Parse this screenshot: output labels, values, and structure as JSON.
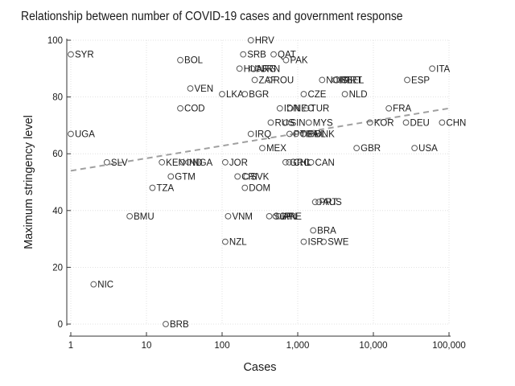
{
  "chart_data": {
    "type": "scatter",
    "title": "Relationship between number of COVID-19 cases and government response",
    "xlabel": "Cases",
    "ylabel": "Maximum stringency level",
    "xscale": "log",
    "xlim": [
      1,
      100000
    ],
    "ylim": [
      0,
      100
    ],
    "xticks": [
      1,
      10,
      100,
      1000,
      10000,
      100000
    ],
    "xtick_labels": [
      "1",
      "10",
      "100",
      "1,000",
      "10,000",
      "100,000"
    ],
    "yticks": [
      0,
      20,
      40,
      60,
      80,
      100
    ],
    "ytick_labels": [
      "0",
      "20",
      "40",
      "60",
      "80",
      "100"
    ],
    "grid": true,
    "legend": "none",
    "trendline": {
      "style": "dashed",
      "color": "#a0a0a0",
      "x": [
        1,
        100000
      ],
      "y": [
        54,
        76
      ]
    },
    "marker_color": "#555555",
    "points": [
      {
        "label": "HRV",
        "x": 240,
        "y": 100
      },
      {
        "label": "SRB",
        "x": 190,
        "y": 95
      },
      {
        "label": "QAT",
        "x": 480,
        "y": 95
      },
      {
        "label": "PAK",
        "x": 700,
        "y": 93
      },
      {
        "label": "SYR",
        "x": 1,
        "y": 95
      },
      {
        "label": "BOL",
        "x": 28,
        "y": 93
      },
      {
        "label": "HUN",
        "x": 170,
        "y": 90
      },
      {
        "label": "ARG",
        "x": 250,
        "y": 90
      },
      {
        "label": "JRN",
        "x": 300,
        "y": 90
      },
      {
        "label": "ITA",
        "x": 60000,
        "y": 90
      },
      {
        "label": "ZAF",
        "x": 270,
        "y": 86
      },
      {
        "label": "ROU",
        "x": 420,
        "y": 86
      },
      {
        "label": "NOR",
        "x": 2100,
        "y": 86
      },
      {
        "label": "ISL",
        "x": 3100,
        "y": 86
      },
      {
        "label": "PRT",
        "x": 3600,
        "y": 86
      },
      {
        "label": "BEL",
        "x": 3900,
        "y": 86
      },
      {
        "label": "ESP",
        "x": 28000,
        "y": 86
      },
      {
        "label": "VEN",
        "x": 38,
        "y": 83
      },
      {
        "label": "LKA",
        "x": 100,
        "y": 81
      },
      {
        "label": "BGR",
        "x": 200,
        "y": 81
      },
      {
        "label": "CZE",
        "x": 1200,
        "y": 81
      },
      {
        "label": "NLD",
        "x": 4200,
        "y": 81
      },
      {
        "label": "COD",
        "x": 28,
        "y": 76
      },
      {
        "label": "IDN",
        "x": 580,
        "y": 76
      },
      {
        "label": "NEC",
        "x": 800,
        "y": 76
      },
      {
        "label": "TUR",
        "x": 1300,
        "y": 76
      },
      {
        "label": "FRA",
        "x": 16000,
        "y": 76
      },
      {
        "label": "RUS",
        "x": 440,
        "y": 71
      },
      {
        "label": "SIN",
        "x": 700,
        "y": 71
      },
      {
        "label": "MYS",
        "x": 1400,
        "y": 71
      },
      {
        "label": "KOR",
        "x": 9000,
        "y": 71
      },
      {
        "label": "DEU",
        "x": 27000,
        "y": 71
      },
      {
        "label": "CHN",
        "x": 81000,
        "y": 71
      },
      {
        "label": "IRQ",
        "x": 240,
        "y": 67
      },
      {
        "label": "POL",
        "x": 780,
        "y": 67
      },
      {
        "label": "THA",
        "x": 950,
        "y": 67
      },
      {
        "label": "PHL",
        "x": 1200,
        "y": 67
      },
      {
        "label": "DNK",
        "x": 1500,
        "y": 67
      },
      {
        "label": "UGA",
        "x": 1,
        "y": 67
      },
      {
        "label": "MEX",
        "x": 340,
        "y": 62
      },
      {
        "label": "GBR",
        "x": 6000,
        "y": 62
      },
      {
        "label": "USA",
        "x": 35000,
        "y": 62
      },
      {
        "label": "SLV",
        "x": 3,
        "y": 57
      },
      {
        "label": "KEN",
        "x": 16,
        "y": 57
      },
      {
        "label": "IND",
        "x": 30,
        "y": 57
      },
      {
        "label": "NGA",
        "x": 36,
        "y": 57
      },
      {
        "label": "JOR",
        "x": 110,
        "y": 57
      },
      {
        "label": "GRC",
        "x": 690,
        "y": 57
      },
      {
        "label": "CHL",
        "x": 770,
        "y": 57
      },
      {
        "label": "CAN",
        "x": 1500,
        "y": 57
      },
      {
        "label": "GTM",
        "x": 21,
        "y": 52
      },
      {
        "label": "CRI",
        "x": 160,
        "y": 52
      },
      {
        "label": "SVK",
        "x": 210,
        "y": 52
      },
      {
        "label": "TZA",
        "x": 12,
        "y": 48
      },
      {
        "label": "DOM",
        "x": 200,
        "y": 48
      },
      {
        "label": "PRT",
        "x": 1700,
        "y": 43
      },
      {
        "label": "AUS",
        "x": 1900,
        "y": 43
      },
      {
        "label": "BMU",
        "x": 6,
        "y": 38
      },
      {
        "label": "VNM",
        "x": 120,
        "y": 38
      },
      {
        "label": "SGP",
        "x": 420,
        "y": 38
      },
      {
        "label": "JPN",
        "x": 510,
        "y": 38
      },
      {
        "label": "ARE",
        "x": 560,
        "y": 38
      },
      {
        "label": "BRA",
        "x": 1600,
        "y": 33
      },
      {
        "label": "NZL",
        "x": 110,
        "y": 29
      },
      {
        "label": "ISR",
        "x": 1200,
        "y": 29
      },
      {
        "label": "SWE",
        "x": 2200,
        "y": 29
      },
      {
        "label": "NIC",
        "x": 2,
        "y": 14
      },
      {
        "label": "BRB",
        "x": 18,
        "y": 0
      }
    ]
  }
}
